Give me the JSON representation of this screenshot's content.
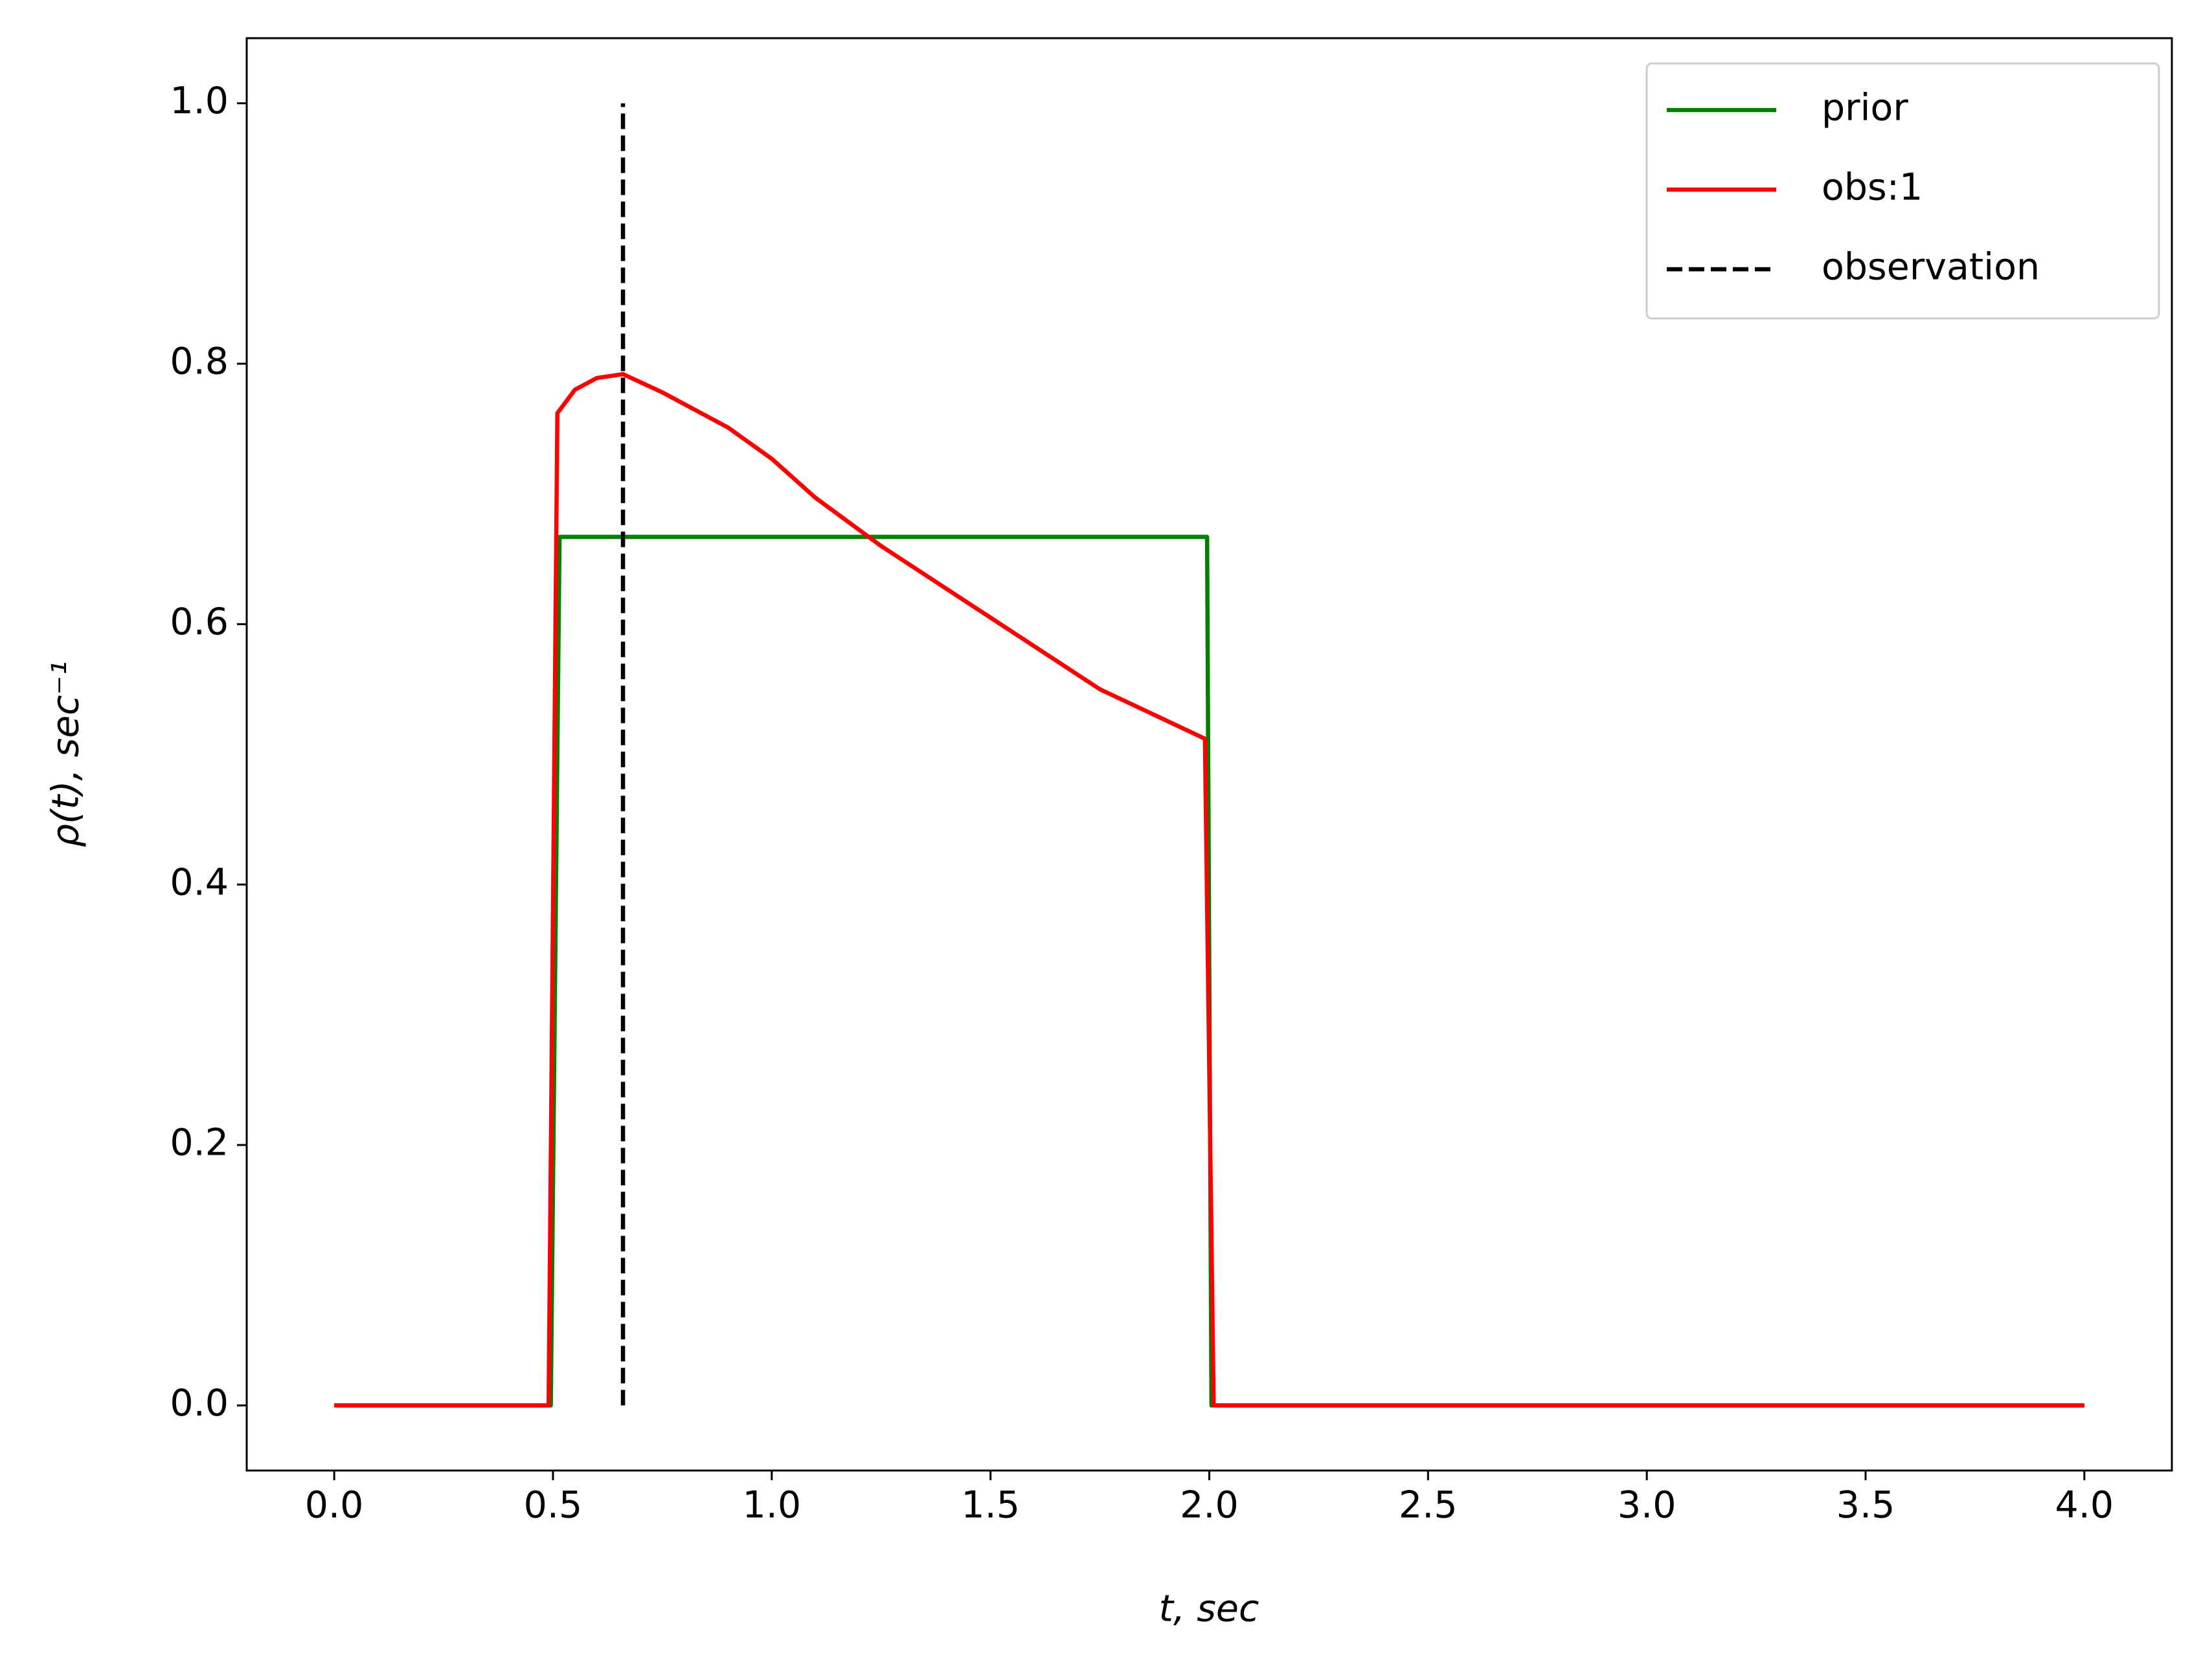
{
  "chart_data": {
    "type": "line",
    "xlabel": "t, sec",
    "ylabel": "ρ(t), sec⁻¹",
    "xlim": [
      -0.2,
      4.2
    ],
    "ylim": [
      -0.05,
      1.05
    ],
    "xticks": [
      {
        "value": 0,
        "label": "0.0"
      },
      {
        "value": 0.5,
        "label": "0.5"
      },
      {
        "value": 1,
        "label": "1.0"
      },
      {
        "value": 1.5,
        "label": "1.5"
      },
      {
        "value": 2,
        "label": "2.0"
      },
      {
        "value": 2.5,
        "label": "2.5"
      },
      {
        "value": 3,
        "label": "3.0"
      },
      {
        "value": 3.5,
        "label": "3.5"
      },
      {
        "value": 4,
        "label": "4.0"
      }
    ],
    "yticks": [
      {
        "value": 0,
        "label": "0.0"
      },
      {
        "value": 0.2,
        "label": "0.2"
      },
      {
        "value": 0.4,
        "label": "0.4"
      },
      {
        "value": 0.6,
        "label": "0.6"
      },
      {
        "value": 0.8,
        "label": "0.8"
      },
      {
        "value": 1,
        "label": "1.0"
      }
    ],
    "legend": "upper right",
    "series": [
      {
        "name": "prior",
        "color": "#008000",
        "dash": "solid",
        "x": [
          0,
          0.495,
          0.515,
          1.995,
          2.005,
          4
        ],
        "values": [
          0,
          0,
          0.667,
          0.667,
          0,
          0
        ]
      },
      {
        "name": "obs:1",
        "color": "#ff0000",
        "dash": "solid",
        "x": [
          0,
          0.49,
          0.51,
          0.55,
          0.6,
          0.66,
          0.75,
          0.9,
          1.0,
          1.1,
          1.25,
          1.5,
          1.75,
          1.99,
          2.01,
          4
        ],
        "values": [
          0,
          0,
          0.762,
          0.78,
          0.789,
          0.792,
          0.778,
          0.751,
          0.727,
          0.697,
          0.66,
          0.605,
          0.55,
          0.512,
          0,
          0
        ]
      },
      {
        "name": "observation",
        "color": "#000000",
        "dash": "dashed",
        "x": [
          0.66,
          0.66
        ],
        "values": [
          0,
          1
        ]
      }
    ]
  }
}
